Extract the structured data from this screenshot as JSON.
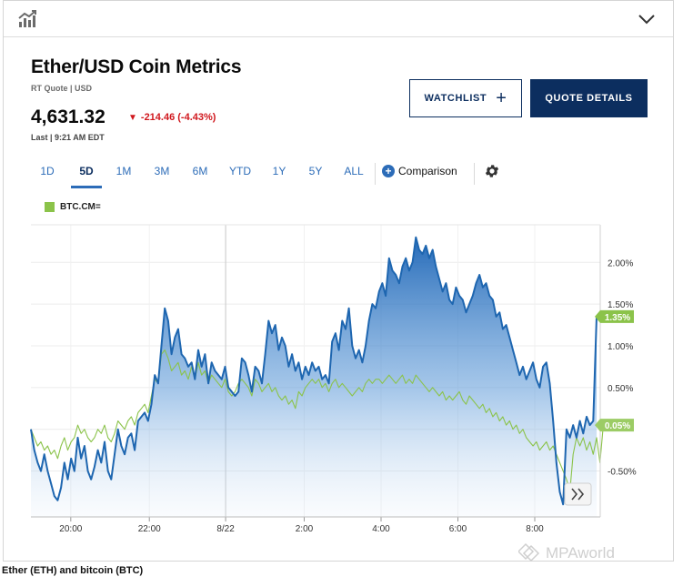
{
  "header": {
    "chart_icon": "bar-chart-trend-icon",
    "collapse_icon": "chevron-down-icon"
  },
  "quote": {
    "title": "Ether/USD Coin Metrics",
    "subtitle": "RT Quote | USD",
    "price": "4,631.32",
    "change": "-214.46 (-4.43%)",
    "last": "Last | 9:21 AM EDT"
  },
  "buttons": {
    "watchlist": "WATCHLIST",
    "quote_details": "QUOTE DETAILS"
  },
  "tabs": [
    {
      "label": "1D",
      "active": false
    },
    {
      "label": "5D",
      "active": true
    },
    {
      "label": "1M",
      "active": false
    },
    {
      "label": "3M",
      "active": false
    },
    {
      "label": "6M",
      "active": false
    },
    {
      "label": "YTD",
      "active": false
    },
    {
      "label": "1Y",
      "active": false
    },
    {
      "label": "5Y",
      "active": false
    },
    {
      "label": "ALL",
      "active": false
    }
  ],
  "comparison_label": "Comparison",
  "legend": {
    "label": "BTC.CM="
  },
  "colors": {
    "eth_line": "#1e66b0",
    "btc_line": "#8bc34a",
    "accent": "#0c2e5f"
  },
  "caption": "Ether (ETH) and bitcoin (BTC)",
  "watermark": "MPAworld",
  "chart_data": {
    "type": "area",
    "x_ticks": [
      "20:00",
      "22:00",
      "8/22",
      "2:00",
      "4:00",
      "6:00",
      "8:00"
    ],
    "y_ticks": [
      "2.00%",
      "1.50%",
      "1.00%",
      "0.50%",
      "-0.50%"
    ],
    "ylim": [
      -1.05,
      2.45
    ],
    "grid": true,
    "badges": [
      {
        "series": "ETH",
        "label": "1.35%",
        "value": 1.35
      },
      {
        "series": "BTC.CM=",
        "label": "0.05%",
        "value": 0.05
      }
    ],
    "series": [
      {
        "name": "ETH",
        "values": [
          0.0,
          -0.25,
          -0.4,
          -0.5,
          -0.3,
          -0.5,
          -0.65,
          -0.8,
          -0.85,
          -0.7,
          -0.4,
          -0.6,
          -0.35,
          -0.5,
          -0.1,
          -0.35,
          -0.2,
          -0.5,
          -0.6,
          -0.45,
          -0.25,
          -0.4,
          -0.15,
          -0.5,
          -0.6,
          -0.3,
          0.0,
          -0.2,
          -0.3,
          -0.1,
          -0.05,
          -0.25,
          0.1,
          0.15,
          0.2,
          0.1,
          0.3,
          0.65,
          0.55,
          1.0,
          1.45,
          1.3,
          0.9,
          1.1,
          1.2,
          0.9,
          0.85,
          0.75,
          0.8,
          0.6,
          0.95,
          0.75,
          0.9,
          0.55,
          0.8,
          0.7,
          0.65,
          0.6,
          0.75,
          0.5,
          0.45,
          0.4,
          0.45,
          0.85,
          0.8,
          0.65,
          0.45,
          0.75,
          0.7,
          0.55,
          0.9,
          1.3,
          1.15,
          1.25,
          0.95,
          1.1,
          1.0,
          0.75,
          0.9,
          0.7,
          0.8,
          0.6,
          0.75,
          0.65,
          0.8,
          0.7,
          0.75,
          0.6,
          0.65,
          0.55,
          1.05,
          1.15,
          0.95,
          1.3,
          1.2,
          1.45,
          1.0,
          0.85,
          0.95,
          0.8,
          1.0,
          1.3,
          1.5,
          1.45,
          1.65,
          1.75,
          1.6,
          2.05,
          1.9,
          1.85,
          1.75,
          1.95,
          2.05,
          1.9,
          2.0,
          2.3,
          2.15,
          2.1,
          2.2,
          2.05,
          2.15,
          1.95,
          1.8,
          1.65,
          1.75,
          1.55,
          1.5,
          1.7,
          1.6,
          1.55,
          1.4,
          1.5,
          1.6,
          1.75,
          1.85,
          1.7,
          1.75,
          1.6,
          1.55,
          1.35,
          1.4,
          1.2,
          1.25,
          1.1,
          0.95,
          0.8,
          0.65,
          0.75,
          0.6,
          0.7,
          0.8,
          0.6,
          0.5,
          0.75,
          0.8,
          0.55,
          0.1,
          -0.4,
          -0.75,
          -0.9,
          0.0,
          -0.1,
          0.05,
          -0.1,
          0.1,
          -0.05,
          0.15,
          0.05,
          0.1,
          1.35
        ]
      },
      {
        "name": "BTC.CM=",
        "values": [
          0.0,
          -0.1,
          -0.2,
          -0.15,
          -0.25,
          -0.2,
          -0.3,
          -0.25,
          -0.35,
          -0.2,
          -0.1,
          -0.25,
          -0.15,
          -0.1,
          0.05,
          -0.05,
          0.0,
          -0.1,
          -0.15,
          -0.1,
          0.0,
          -0.05,
          0.05,
          -0.1,
          -0.15,
          -0.05,
          0.1,
          0.05,
          0.0,
          0.1,
          0.15,
          0.05,
          0.2,
          0.25,
          0.3,
          0.2,
          0.4,
          0.6,
          0.55,
          0.9,
          0.95,
          0.85,
          0.7,
          0.75,
          0.8,
          0.65,
          0.7,
          0.6,
          0.75,
          0.6,
          0.8,
          0.65,
          0.7,
          0.55,
          0.65,
          0.6,
          0.55,
          0.5,
          0.6,
          0.45,
          0.4,
          0.45,
          0.55,
          0.6,
          0.55,
          0.5,
          0.4,
          0.6,
          0.55,
          0.45,
          0.5,
          0.55,
          0.45,
          0.5,
          0.4,
          0.35,
          0.4,
          0.3,
          0.35,
          0.25,
          0.45,
          0.4,
          0.5,
          0.55,
          0.6,
          0.55,
          0.6,
          0.5,
          0.55,
          0.45,
          0.55,
          0.6,
          0.5,
          0.55,
          0.5,
          0.45,
          0.4,
          0.45,
          0.5,
          0.45,
          0.55,
          0.6,
          0.55,
          0.6,
          0.6,
          0.55,
          0.6,
          0.65,
          0.6,
          0.55,
          0.6,
          0.65,
          0.55,
          0.6,
          0.55,
          0.65,
          0.6,
          0.55,
          0.5,
          0.45,
          0.5,
          0.45,
          0.4,
          0.45,
          0.35,
          0.4,
          0.35,
          0.4,
          0.45,
          0.35,
          0.3,
          0.4,
          0.35,
          0.3,
          0.25,
          0.3,
          0.2,
          0.25,
          0.15,
          0.2,
          0.1,
          0.15,
          0.05,
          0.1,
          0.0,
          0.05,
          -0.05,
          0.0,
          -0.1,
          -0.15,
          -0.2,
          -0.15,
          -0.25,
          -0.2,
          -0.15,
          -0.25,
          -0.2,
          -0.3,
          -0.4,
          -0.5,
          -0.6,
          -0.75,
          -0.3,
          -0.1,
          -0.2,
          -0.1,
          -0.25,
          -0.15,
          -0.3,
          -0.1,
          -0.4,
          0.05
        ]
      }
    ]
  }
}
